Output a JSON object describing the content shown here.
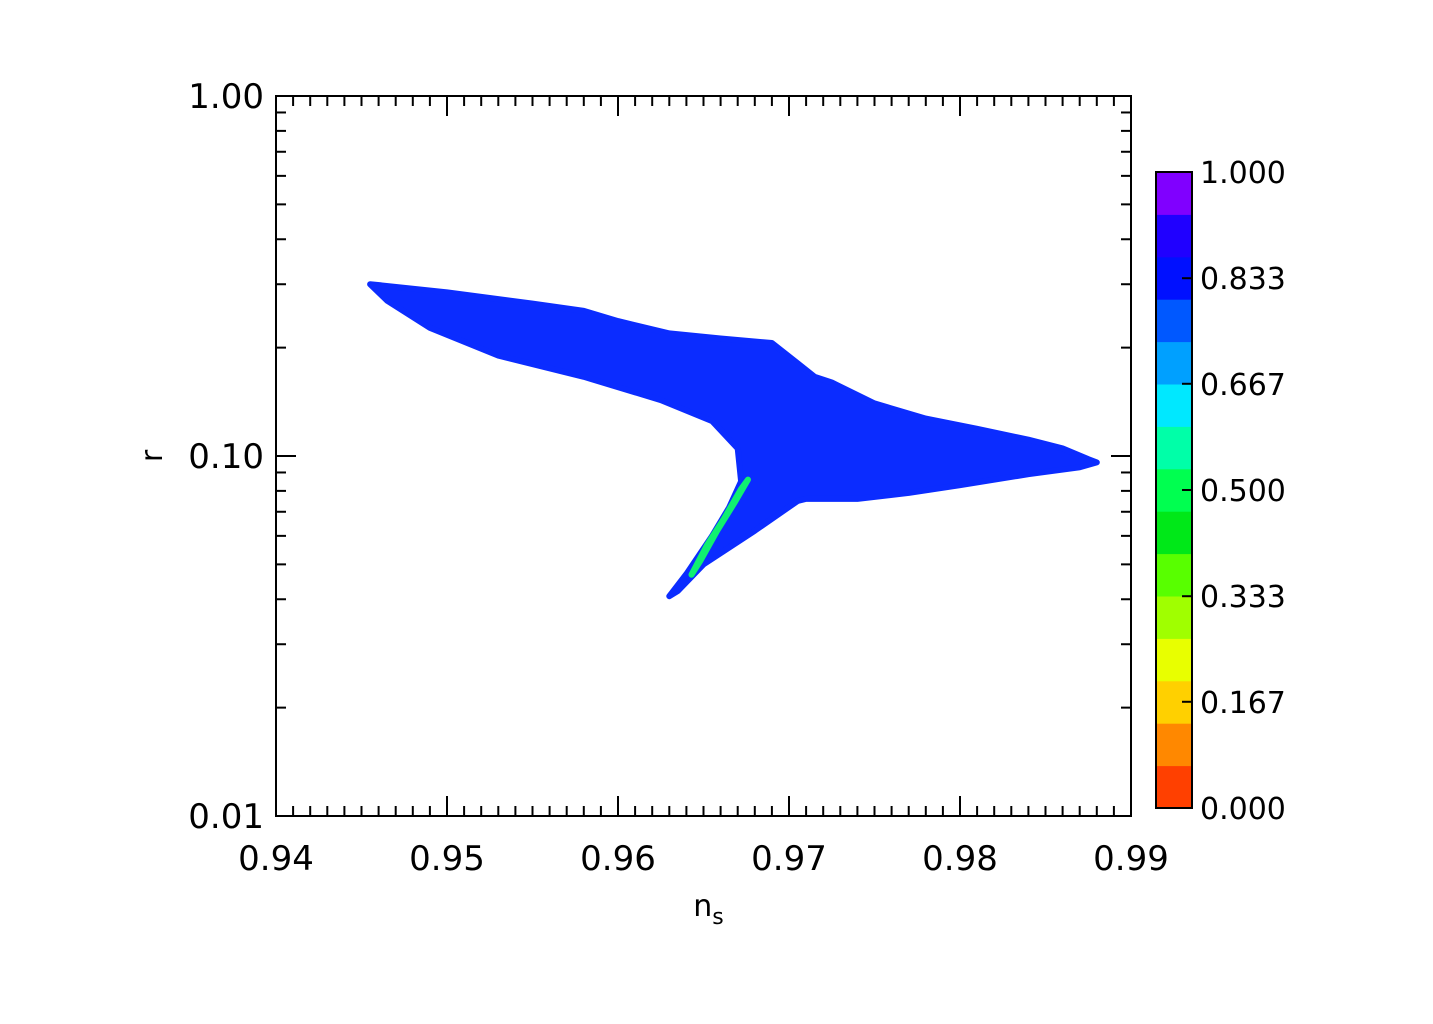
{
  "chart_data": {
    "type": "scatter",
    "title": "",
    "xlabel": "n",
    "xlabel_subscript": "s",
    "ylabel": "r",
    "xlim": [
      0.94,
      0.99
    ],
    "ylim": [
      0.01,
      1.0
    ],
    "y_scale": "log",
    "grid": false,
    "x_ticks": [
      "0.94",
      "0.95",
      "0.96",
      "0.97",
      "0.98",
      "0.99"
    ],
    "x_tick_values": [
      0.94,
      0.95,
      0.96,
      0.97,
      0.98,
      0.99
    ],
    "y_ticks": [
      "0.01",
      "0.10",
      "1.00"
    ],
    "y_tick_values": [
      0.01,
      0.1,
      1.0
    ],
    "colorbar": {
      "range": [
        0,
        1
      ],
      "labels": [
        "0.000",
        "0.167",
        "0.333",
        "0.500",
        "0.667",
        "0.833",
        "1.000"
      ],
      "label_values": [
        0,
        0.167,
        0.333,
        0.5,
        0.667,
        0.833,
        1.0
      ],
      "colors_bottom_to_top": [
        "#ff4000",
        "#ff8800",
        "#ffd000",
        "#e8ff00",
        "#a0ff00",
        "#58ff00",
        "#00e818",
        "#00ff50",
        "#00ffa8",
        "#00e8ff",
        "#00a0ff",
        "#0058ff",
        "#0010ff",
        "#2000ff",
        "#8000ff"
      ]
    },
    "regions": [
      {
        "name": "main",
        "value": 0.85,
        "color": "#0b2cff",
        "outline": [
          [
            0.9455,
            0.3
          ],
          [
            0.95,
            0.285
          ],
          [
            0.955,
            0.265
          ],
          [
            0.958,
            0.253
          ],
          [
            0.96,
            0.237
          ],
          [
            0.963,
            0.219
          ],
          [
            0.966,
            0.212
          ],
          [
            0.969,
            0.206
          ],
          [
            0.9705,
            0.181
          ],
          [
            0.9715,
            0.166
          ],
          [
            0.9725,
            0.16
          ],
          [
            0.975,
            0.14
          ],
          [
            0.978,
            0.127
          ],
          [
            0.981,
            0.119
          ],
          [
            0.984,
            0.111
          ],
          [
            0.986,
            0.105
          ],
          [
            0.9875,
            0.098
          ],
          [
            0.988,
            0.096
          ],
          [
            0.987,
            0.093
          ],
          [
            0.984,
            0.089
          ],
          [
            0.98,
            0.083
          ],
          [
            0.977,
            0.079
          ],
          [
            0.974,
            0.076
          ],
          [
            0.971,
            0.076
          ],
          [
            0.9705,
            0.075
          ],
          [
            0.968,
            0.062
          ],
          [
            0.965,
            0.05
          ],
          [
            0.9635,
            0.0422
          ],
          [
            0.963,
            0.0408
          ],
          [
            0.964,
            0.047
          ],
          [
            0.9655,
            0.06
          ],
          [
            0.9665,
            0.072
          ],
          [
            0.9672,
            0.085
          ],
          [
            0.967,
            0.105
          ],
          [
            0.9655,
            0.125
          ],
          [
            0.9625,
            0.143
          ],
          [
            0.958,
            0.166
          ],
          [
            0.953,
            0.19
          ],
          [
            0.949,
            0.227
          ],
          [
            0.9465,
            0.27
          ]
        ]
      },
      {
        "name": "low",
        "value": 0.47,
        "color": "#10f070",
        "outline": [
          [
            0.9643,
            0.0468
          ],
          [
            0.9652,
            0.0565
          ],
          [
            0.9662,
            0.067
          ],
          [
            0.9672,
            0.081
          ],
          [
            0.9676,
            0.086
          ],
          [
            0.9668,
            0.074
          ],
          [
            0.9658,
            0.062
          ],
          [
            0.9648,
            0.051
          ]
        ]
      }
    ]
  }
}
